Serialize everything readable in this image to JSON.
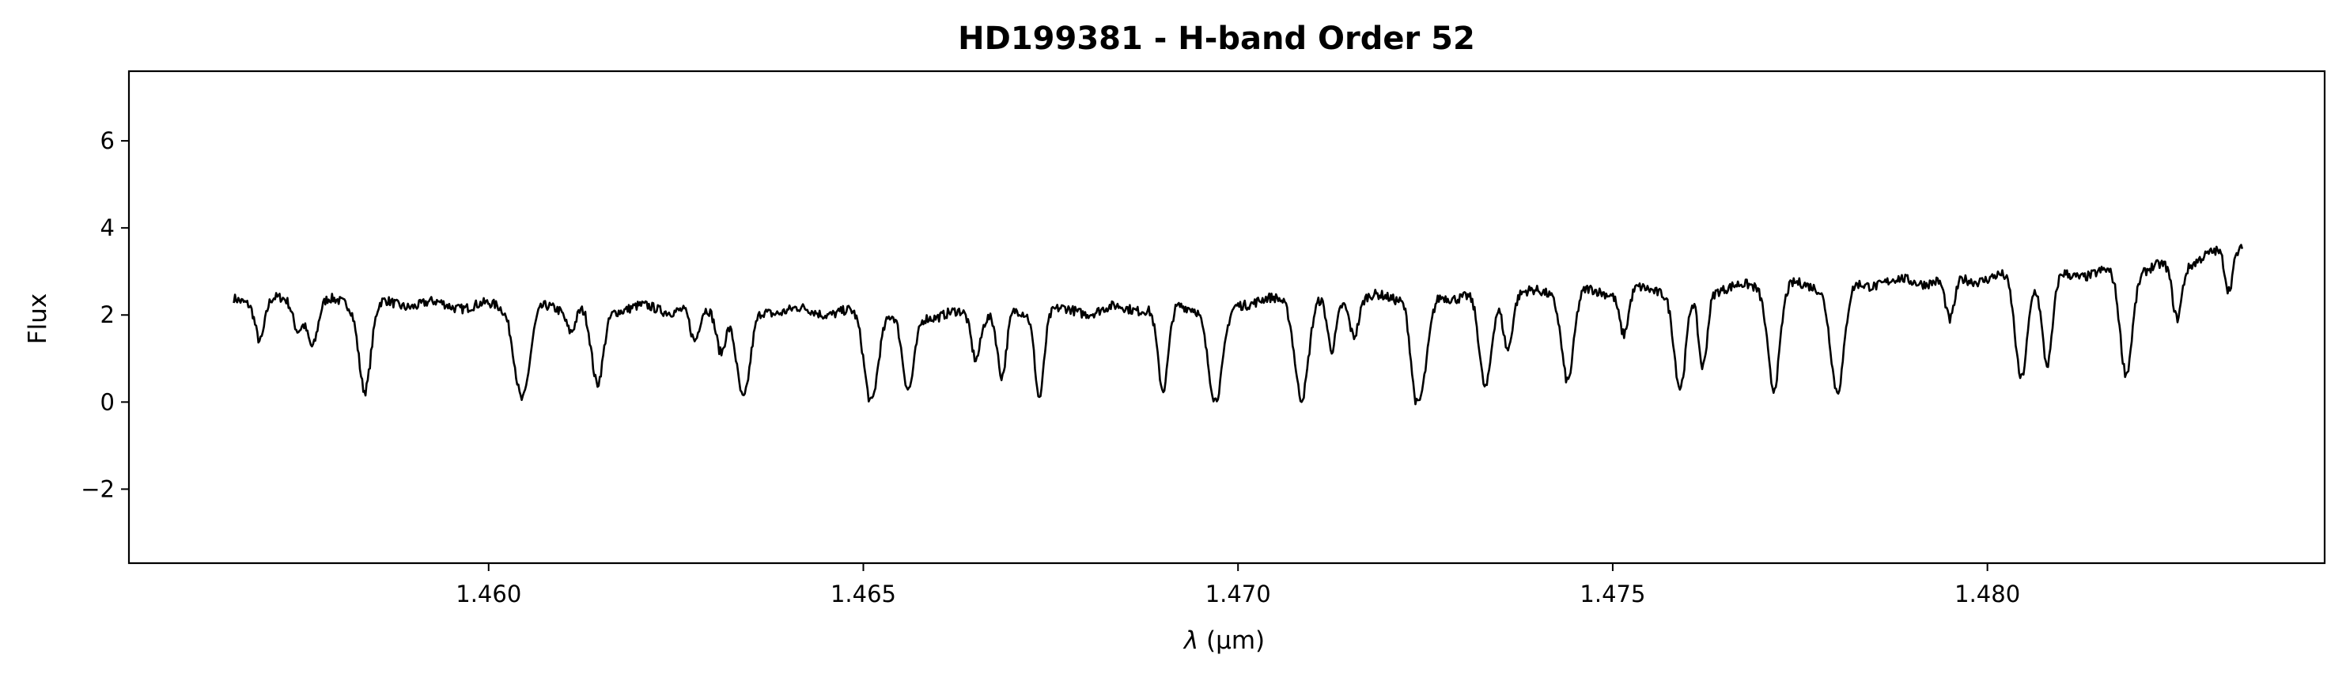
{
  "chart_data": {
    "type": "line",
    "title": "HD199381 - H-band Order 52",
    "xlabel_prefix": "λ",
    "xlabel_unit": "(μm)",
    "ylabel": "Flux",
    "xlim": [
      1.4552,
      1.4845
    ],
    "ylim": [
      -3.7,
      7.6
    ],
    "x_ticks": [
      1.46,
      1.465,
      1.47,
      1.475,
      1.48
    ],
    "x_tick_labels": [
      "1.460",
      "1.465",
      "1.470",
      "1.475",
      "1.480"
    ],
    "y_ticks": [
      -2,
      0,
      2,
      4,
      6
    ],
    "y_tick_labels": [
      "−2",
      "0",
      "2",
      "4",
      "6"
    ],
    "grid": false,
    "line_color": "#000000",
    "series": [
      {
        "x_start": 1.4566,
        "x_end": 1.4834,
        "continuum": [
          [
            1.4566,
            2.35
          ],
          [
            1.458,
            2.3
          ],
          [
            1.46,
            2.2
          ],
          [
            1.462,
            2.15
          ],
          [
            1.464,
            2.1
          ],
          [
            1.466,
            2.0
          ],
          [
            1.468,
            2.1
          ],
          [
            1.47,
            2.3
          ],
          [
            1.472,
            2.4
          ],
          [
            1.474,
            2.5
          ],
          [
            1.476,
            2.6
          ],
          [
            1.478,
            2.7
          ],
          [
            1.48,
            2.85
          ],
          [
            1.482,
            3.0
          ],
          [
            1.4827,
            3.2
          ],
          [
            1.4834,
            3.6
          ]
        ],
        "absorption_lines": [
          [
            1.45695,
            0.9,
            6e-05
          ],
          [
            1.45745,
            0.6,
            6e-05
          ],
          [
            1.45765,
            1.0,
            7e-05
          ],
          [
            1.45835,
            2.0,
            8e-05
          ],
          [
            1.46045,
            2.1,
            0.0001
          ],
          [
            1.4611,
            0.5,
            6e-05
          ],
          [
            1.46145,
            1.8,
            8e-05
          ],
          [
            1.46275,
            0.8,
            6e-05
          ],
          [
            1.4631,
            0.9,
            6e-05
          ],
          [
            1.4634,
            2.1,
            9e-05
          ],
          [
            1.4651,
            2.0,
            9e-05
          ],
          [
            1.4656,
            1.8,
            8e-05
          ],
          [
            1.4665,
            1.0,
            6e-05
          ],
          [
            1.46685,
            1.5,
            6e-05
          ],
          [
            1.46735,
            1.9,
            6e-05
          ],
          [
            1.469,
            2.0,
            7e-05
          ],
          [
            1.4697,
            2.3,
            0.0001
          ],
          [
            1.47085,
            2.2,
            9e-05
          ],
          [
            1.47125,
            1.2,
            6e-05
          ],
          [
            1.47155,
            0.8,
            6e-05
          ],
          [
            1.47235,
            1.1,
            6e-05
          ],
          [
            1.47245,
            2.0,
            9e-05
          ],
          [
            1.4733,
            2.2,
            8e-05
          ],
          [
            1.4736,
            1.2,
            6e-05
          ],
          [
            1.4744,
            2.0,
            8e-05
          ],
          [
            1.47515,
            1.0,
            6e-05
          ],
          [
            1.4759,
            2.3,
            8e-05
          ],
          [
            1.4762,
            1.8,
            6e-05
          ],
          [
            1.47715,
            2.3,
            8e-05
          ],
          [
            1.478,
            2.5,
            9e-05
          ],
          [
            1.4795,
            1.0,
            6e-05
          ],
          [
            1.48045,
            2.3,
            8e-05
          ],
          [
            1.4808,
            2.1,
            7e-05
          ],
          [
            1.48185,
            2.3,
            8e-05
          ],
          [
            1.48253,
            1.2,
            6e-05
          ],
          [
            1.48322,
            0.9,
            5e-05
          ]
        ]
      }
    ]
  }
}
